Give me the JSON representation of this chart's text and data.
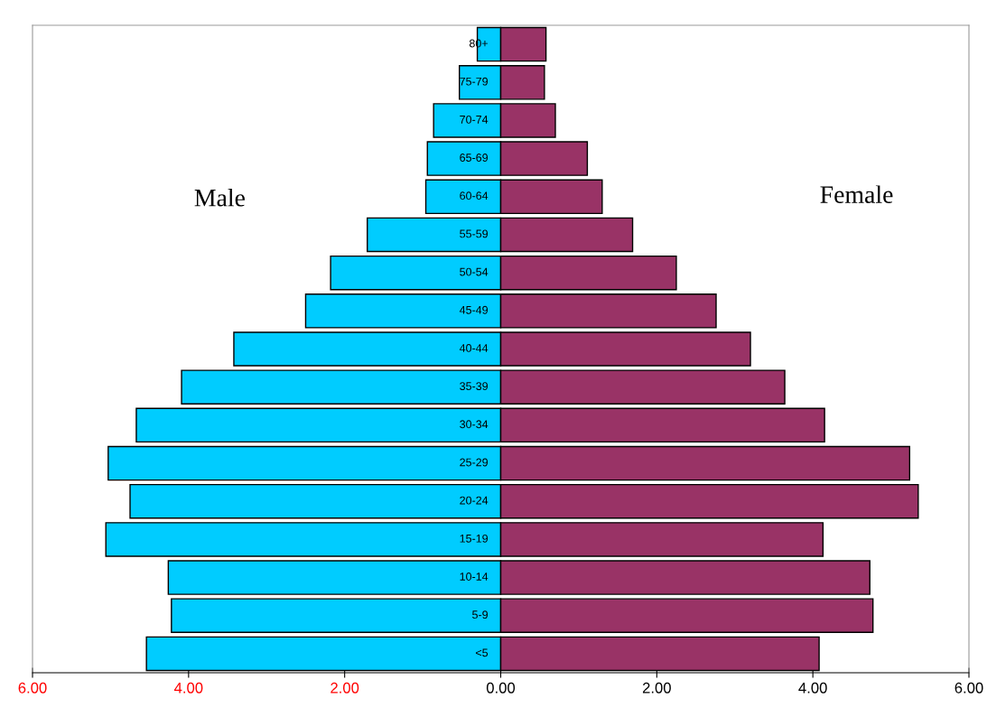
{
  "chart_data": {
    "type": "bar",
    "orientation": "horizontal",
    "stacked": true,
    "annotations": [
      "Male",
      "Female"
    ],
    "legend": false,
    "grid": false,
    "categories": [
      "80+",
      "75-79",
      "70-74",
      "65-69",
      "60-64",
      "55-59",
      "50-54",
      "45-49",
      "40-44",
      "35-39",
      "30-34",
      "25-29",
      "20-24",
      "15-19",
      "10-14",
      "5-9",
      "<5"
    ],
    "series": [
      {
        "color": "#00ccff",
        "values": [
          -0.3,
          -0.53,
          -0.86,
          -0.94,
          -0.96,
          -1.71,
          -2.18,
          -2.5,
          -3.42,
          -4.09,
          -4.67,
          -5.03,
          -4.75,
          -5.06,
          -4.26,
          -4.22,
          -4.54
        ]
      },
      {
        "color": "#993366",
        "values": [
          0.58,
          0.56,
          0.7,
          1.11,
          1.3,
          1.69,
          2.25,
          2.76,
          3.2,
          3.64,
          4.15,
          5.24,
          5.35,
          4.13,
          4.73,
          4.77,
          4.08
        ]
      }
    ],
    "xlim": [
      -6,
      6
    ],
    "xticks": [
      {
        "value": -6,
        "label": "6.00"
      },
      {
        "value": -4,
        "label": "4.00"
      },
      {
        "value": -2,
        "label": "2.00"
      },
      {
        "value": 0,
        "label": "0.00"
      },
      {
        "value": 2,
        "label": "2.00"
      },
      {
        "value": 4,
        "label": "4.00"
      },
      {
        "value": 6,
        "label": "6.00"
      }
    ]
  }
}
